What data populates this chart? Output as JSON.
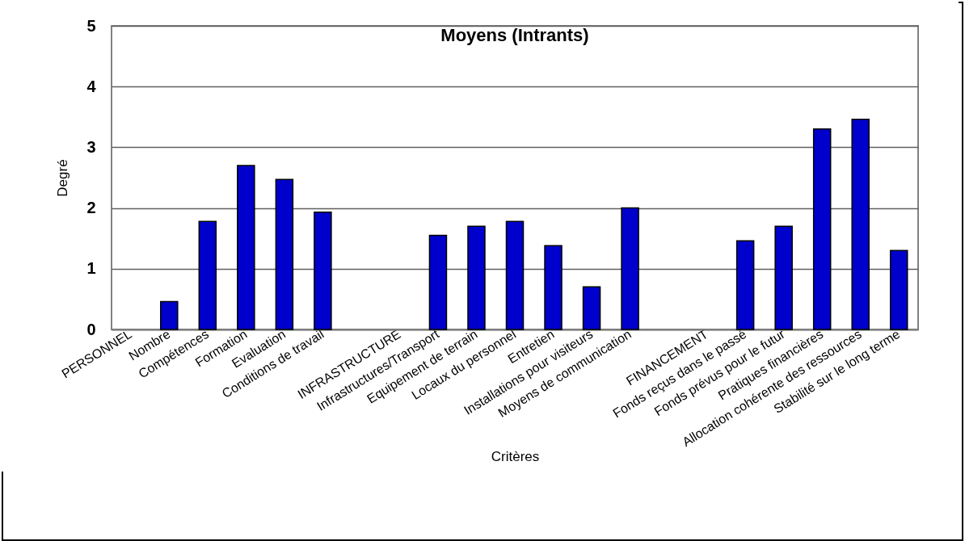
{
  "chart_data": {
    "type": "bar",
    "title": "Moyens (Intrants)",
    "xlabel": "Critères",
    "ylabel": "Degré",
    "categories": [
      "PERSONNEL",
      "Nombre",
      "Compétences",
      "Formation",
      "Evaluation",
      "Conditions de travail",
      null,
      "INFRASTRUCTURE",
      "Infrastructures/Transport",
      "Equipement de terrain",
      "Locaux du personnel",
      "Entretien",
      "Installations pour visiteurs",
      "Moyens de communication",
      null,
      "FINANCEMENT",
      "Fonds reçus dans le passé",
      "Fonds prévus pour le futur",
      "Pratiques financières",
      "Allocation cohérente des ressources",
      "Stabilité sur le long terme"
    ],
    "values": [
      null,
      0.46,
      1.78,
      2.7,
      2.47,
      1.93,
      null,
      null,
      1.55,
      1.7,
      1.78,
      1.38,
      0.7,
      2.0,
      null,
      null,
      1.46,
      1.7,
      3.3,
      3.46,
      1.3
    ],
    "color": "#0000cc",
    "ylim": [
      0,
      5
    ],
    "yticks": [
      0,
      1,
      2,
      3,
      4,
      5
    ],
    "grid": "y"
  }
}
